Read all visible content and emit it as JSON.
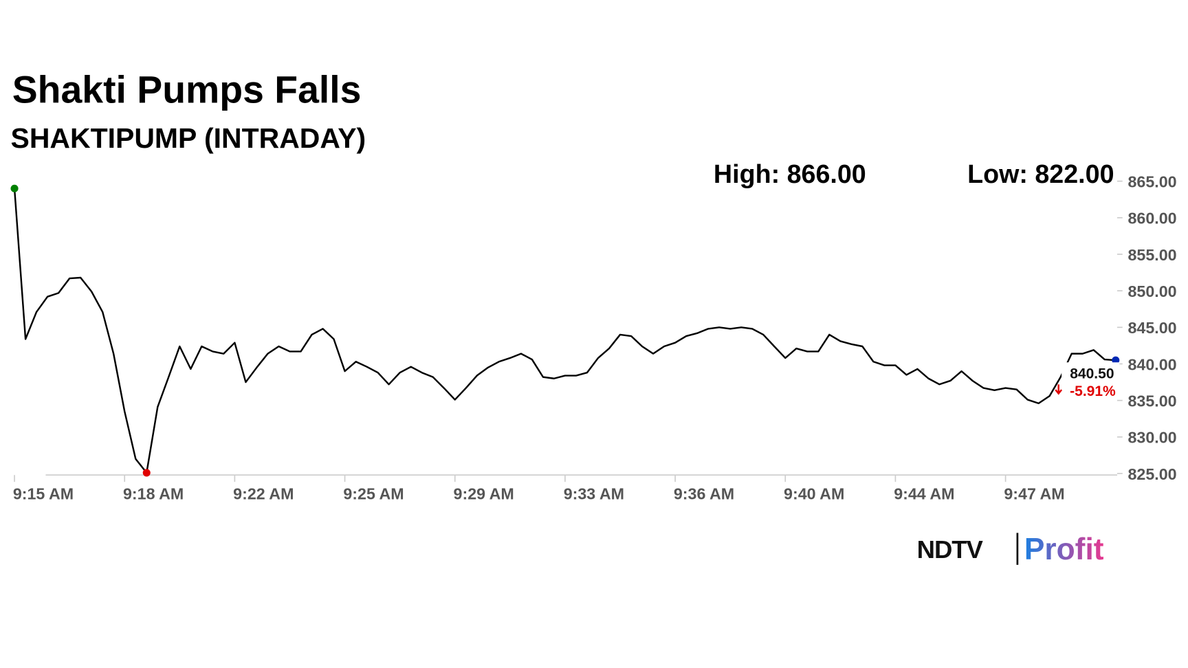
{
  "chart_data": {
    "type": "line",
    "title": "Shakti Pumps Falls",
    "subtitle": "SHAKTIPUMP (INTRADAY)",
    "high_label": "High: 866.00",
    "low_label": "Low: 822.00",
    "last_price_label": "840.50",
    "change_label": "-5.91%",
    "brand": {
      "left": "NDTV",
      "right": "Profit"
    },
    "categories": [
      "9:15 AM",
      null,
      null,
      null,
      null,
      null,
      null,
      null,
      null,
      null,
      "9:18 AM",
      null,
      null,
      null,
      null,
      null,
      null,
      null,
      null,
      null,
      "9:22 AM",
      null,
      null,
      null,
      null,
      null,
      null,
      null,
      null,
      null,
      "9:25 AM",
      null,
      null,
      null,
      null,
      null,
      null,
      null,
      null,
      null,
      "9:29 AM",
      null,
      null,
      null,
      null,
      null,
      null,
      null,
      null,
      null,
      "9:33 AM",
      null,
      null,
      null,
      null,
      null,
      null,
      null,
      null,
      null,
      "9:36 AM",
      null,
      null,
      null,
      null,
      null,
      null,
      null,
      null,
      null,
      "9:40 AM",
      null,
      null,
      null,
      null,
      null,
      null,
      null,
      null,
      null,
      "9:44 AM",
      null,
      null,
      null,
      null,
      null,
      null,
      null,
      null,
      null,
      "9:47 AM",
      null,
      null,
      null,
      null,
      null,
      null,
      null,
      null,
      null,
      null
    ],
    "values": [
      864.0,
      843.4,
      847.1,
      849.2,
      849.7,
      851.7,
      851.8,
      849.9,
      847.1,
      841.4,
      833.5,
      827.0,
      825.1,
      834.1,
      838.2,
      842.4,
      839.3,
      842.4,
      841.7,
      841.4,
      842.9,
      837.5,
      839.5,
      841.4,
      842.4,
      841.7,
      841.7,
      844.0,
      844.8,
      843.4,
      839.0,
      840.3,
      839.6,
      838.8,
      837.2,
      838.8,
      839.6,
      838.8,
      838.2,
      836.7,
      835.1,
      836.7,
      838.4,
      839.5,
      840.3,
      840.8,
      841.4,
      840.6,
      838.2,
      838.0,
      838.4,
      838.4,
      838.8,
      840.8,
      842.1,
      844.0,
      843.8,
      842.4,
      841.4,
      842.4,
      842.9,
      843.8,
      844.2,
      844.8,
      845.0,
      844.8,
      845.0,
      844.8,
      844.0,
      842.4,
      840.8,
      842.1,
      841.7,
      841.7,
      844.0,
      843.1,
      842.7,
      842.4,
      840.3,
      839.8,
      839.8,
      838.5,
      839.3,
      838.0,
      837.2,
      837.7,
      839.0,
      837.7,
      836.7,
      836.4,
      836.7,
      836.5,
      835.1,
      834.6,
      835.6,
      838.2,
      841.4,
      841.4,
      841.9,
      840.6,
      840.5
    ],
    "color": "#000000",
    "point_colors": {
      "first": "#008000",
      "min": "#e00000",
      "last": "#0028b4"
    },
    "ylim": [
      825,
      865
    ],
    "yticks": [
      {
        "value": 825,
        "label": "825.00"
      },
      {
        "value": 830,
        "label": "830.00"
      },
      {
        "value": 835,
        "label": "835.00"
      },
      {
        "value": 840,
        "label": "840.00"
      },
      {
        "value": 845,
        "label": "845.00"
      },
      {
        "value": 850,
        "label": "850.00"
      },
      {
        "value": 855,
        "label": "855.00"
      },
      {
        "value": 860,
        "label": "860.00"
      },
      {
        "value": 865,
        "label": "865.00"
      }
    ]
  }
}
